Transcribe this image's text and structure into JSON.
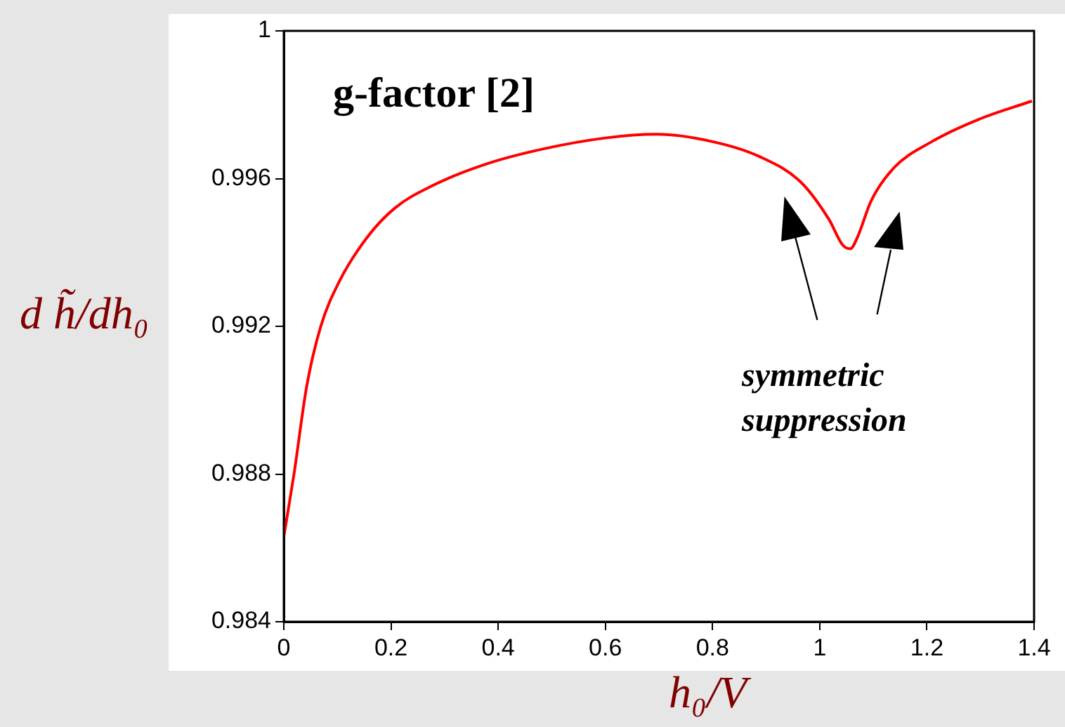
{
  "chart_data": {
    "type": "line",
    "title": "g-factor [2]",
    "xlabel": "h₀/V",
    "ylabel": "d h̃/dh₀",
    "annotations": [
      "symmetric suppression"
    ],
    "x": [
      0,
      0.019,
      0.043,
      0.069,
      0.103,
      0.155,
      0.207,
      0.276,
      0.379,
      0.483,
      0.6,
      0.696,
      0.8,
      0.887,
      0.965,
      1.017,
      1.043,
      1.057,
      1.07,
      1.096,
      1.139,
      1.209,
      1.296,
      1.396
    ],
    "series": [
      {
        "color": "#ff0000",
        "values": [
          0.9863,
          0.988,
          0.9904,
          0.992,
          0.9932,
          0.9944,
          0.9952,
          0.9958,
          0.9964,
          0.9968,
          0.9971,
          0.9972,
          0.997,
          0.9966,
          0.9959,
          0.9949,
          0.9942,
          0.9941,
          0.9944,
          0.9954,
          0.9963,
          0.997,
          0.9976,
          0.9981
        ]
      }
    ],
    "xlim": [
      0,
      1.4
    ],
    "xticks": [
      0,
      0.2,
      0.4,
      0.6,
      0.8,
      1,
      1.2,
      1.4
    ],
    "ylim": [
      0.984,
      1
    ],
    "yticks": [
      0.984,
      0.988,
      0.992,
      0.996,
      1
    ],
    "grid": false,
    "legend": false,
    "marker": "none",
    "line_style": "solid"
  }
}
